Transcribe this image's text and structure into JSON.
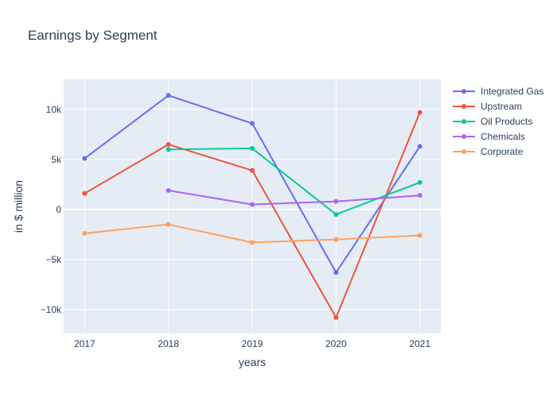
{
  "chart_data": {
    "type": "line",
    "title": "Earnings by Segment",
    "xlabel": "years",
    "ylabel": "in $ million",
    "x": [
      "2017",
      "2018",
      "2019",
      "2020",
      "2021"
    ],
    "xlim": [
      2016.75,
      2021.25
    ],
    "ylim": [
      -12400,
      13000
    ],
    "yticks": [
      -10000,
      -5000,
      0,
      5000,
      10000
    ],
    "ytick_labels": [
      "−10k",
      "−5k",
      "0",
      "5k",
      "10k"
    ],
    "grid": true,
    "legend_position": "right",
    "colors": {
      "plot_bg": "#e5ecf6",
      "grid": "#ffffff",
      "text": "#2a3f5f"
    },
    "series": [
      {
        "name": "Integrated Gas",
        "color": "#636efa",
        "values": [
          5100,
          11400,
          8600,
          -6300,
          6300
        ]
      },
      {
        "name": "Upstream",
        "color": "#ef553b",
        "values": [
          1600,
          6500,
          3900,
          -10800,
          9700
        ]
      },
      {
        "name": "Oil Products",
        "color": "#00cc96",
        "values": [
          null,
          6000,
          6100,
          -500,
          2700
        ]
      },
      {
        "name": "Chemicals",
        "color": "#ab63fa",
        "values": [
          null,
          1900,
          500,
          800,
          1400
        ]
      },
      {
        "name": "Corporate",
        "color": "#ffa15a",
        "values": [
          -2400,
          -1500,
          -3300,
          -3000,
          -2600
        ]
      }
    ]
  }
}
